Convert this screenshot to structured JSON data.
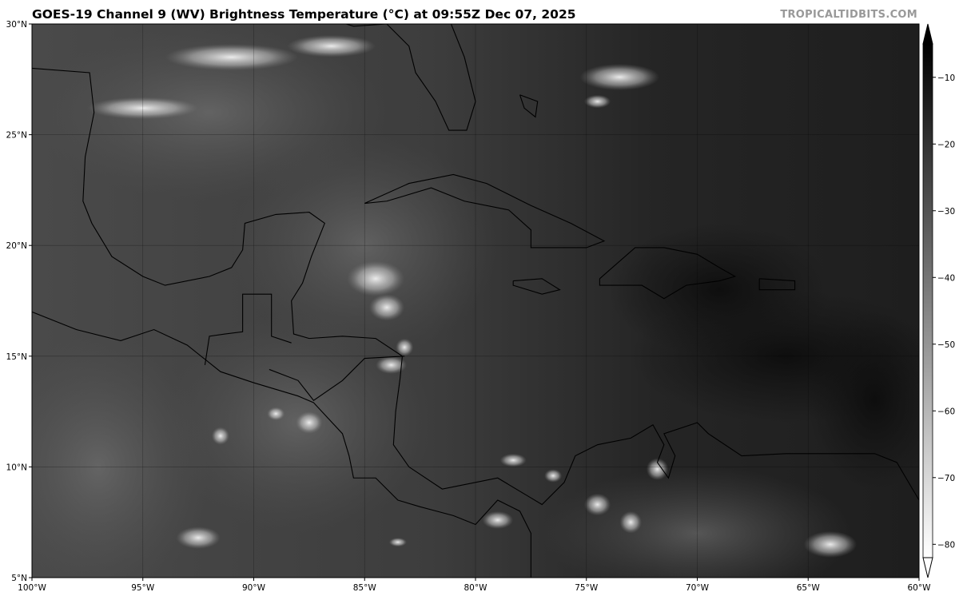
{
  "header": {
    "title": "GOES-19 Channel 9 (WV) Brightness Temperature (°C) at 09:55Z Dec 07, 2025",
    "brand": "TROPICALTIDBITS.COM"
  },
  "map": {
    "extent": {
      "lon": [
        -100,
        -60
      ],
      "lat": [
        5,
        30
      ]
    },
    "lon_ticks": [
      {
        "value": -100,
        "label": "100°W"
      },
      {
        "value": -95,
        "label": "95°W"
      },
      {
        "value": -90,
        "label": "90°W"
      },
      {
        "value": -85,
        "label": "85°W"
      },
      {
        "value": -80,
        "label": "80°W"
      },
      {
        "value": -75,
        "label": "75°W"
      },
      {
        "value": -70,
        "label": "70°W"
      },
      {
        "value": -65,
        "label": "65°W"
      },
      {
        "value": -60,
        "label": "60°W"
      }
    ],
    "lat_ticks": [
      {
        "value": 30,
        "label": "30°N"
      },
      {
        "value": 25,
        "label": "25°N"
      },
      {
        "value": 20,
        "label": "20°N"
      },
      {
        "value": 15,
        "label": "15°N"
      },
      {
        "value": 10,
        "label": "10°N"
      },
      {
        "value": 5,
        "label": "5°N"
      }
    ],
    "gridlines": true
  },
  "colorbar": {
    "range": [
      -82,
      -5
    ],
    "colormap": "grayscale, black warm to white cold",
    "extend": "both",
    "ticks": [
      {
        "value": -10,
        "label": "−10"
      },
      {
        "value": -20,
        "label": "−20"
      },
      {
        "value": -30,
        "label": "−30"
      },
      {
        "value": -40,
        "label": "−40"
      },
      {
        "value": -50,
        "label": "−50"
      },
      {
        "value": -60,
        "label": "−60"
      },
      {
        "value": -70,
        "label": "−70"
      },
      {
        "value": -80,
        "label": "−80"
      }
    ]
  }
}
